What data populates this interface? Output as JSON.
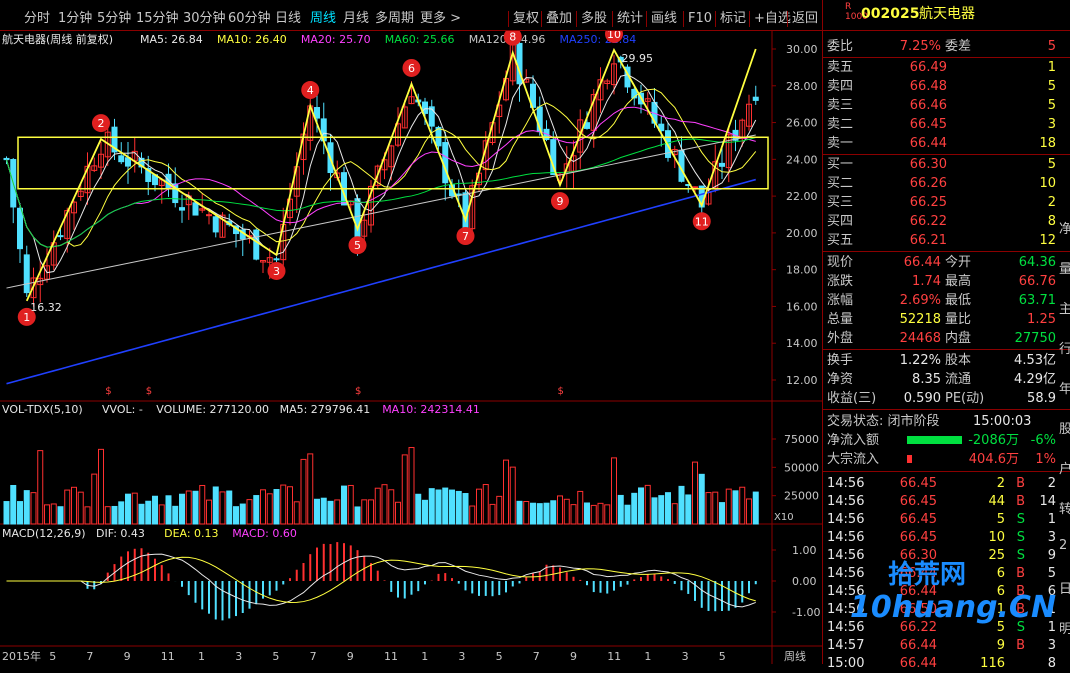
{
  "toolbar": {
    "periods": [
      "分时",
      "1分钟",
      "5分钟",
      "15分钟",
      "30分钟",
      "60分钟",
      "日线",
      "周线",
      "月线",
      "多周期",
      "更多 >"
    ],
    "active_period": "周线",
    "tools": [
      "复权",
      "叠加",
      "多股",
      "统计",
      "画线",
      "F10",
      "标记",
      "+自选",
      "返回"
    ]
  },
  "chart": {
    "title": "航天电器(周线 前复权)",
    "ma_labels": [
      {
        "text": "MA5: 26.84",
        "color": "#e8e8e8"
      },
      {
        "text": "MA10: 26.40",
        "color": "#ffff40"
      },
      {
        "text": "MA20: 25.70",
        "color": "#ff40ff"
      },
      {
        "text": "MA60: 25.66",
        "color": "#00e040"
      },
      {
        "text": "MA120: 24.96",
        "color": "#c8c8c8"
      },
      {
        "text": "MA250: 22.84",
        "color": "#2040ff"
      }
    ],
    "price_ticks": [
      "30.00",
      "28.00",
      "26.00",
      "24.00",
      "22.00",
      "20.00",
      "18.00",
      "16.00",
      "14.00",
      "12.00"
    ],
    "high_label": "29.95",
    "low_label": "16.32",
    "volume_title": "VOL-TDX(5,10)",
    "volume_labels": [
      {
        "text": "VVOL: -",
        "color": "#e8e8e8"
      },
      {
        "text": "VOLUME: 277120.00",
        "color": "#e8e8e8"
      },
      {
        "text": "MA5: 279796.41",
        "color": "#e8e8e8"
      },
      {
        "text": "MA10: 242314.41",
        "color": "#ff40ff"
      }
    ],
    "volume_ticks": [
      "75000",
      "50000",
      "25000"
    ],
    "volume_unit": "X10",
    "macd_title": "MACD(12,26,9)",
    "macd_labels": [
      {
        "text": "DIF: 0.43",
        "color": "#e8e8e8"
      },
      {
        "text": "DEA: 0.13",
        "color": "#ffff40"
      },
      {
        "text": "MACD: 0.60",
        "color": "#ff40ff"
      }
    ],
    "macd_ticks": [
      "1.00",
      "0.00",
      "-1.00"
    ],
    "x_labels": [
      "2015年",
      "5",
      "7",
      "9",
      "11",
      "1",
      "3",
      "5",
      "7",
      "9",
      "11",
      "1",
      "3",
      "5",
      "7",
      "9",
      "11",
      "1",
      "3",
      "5"
    ],
    "period_label": "周线",
    "markers": [
      "1",
      "2",
      "3",
      "4",
      "5",
      "6",
      "7",
      "8",
      "9",
      "10",
      "11"
    ],
    "colors": {
      "up": "#ff3030",
      "down": "#50e0ff",
      "ma5": "#e8e8e8",
      "ma10": "#ffff40",
      "ma20": "#ff40ff",
      "ma60": "#00e040",
      "ma120": "#c8c8c8",
      "ma250": "#2040ff",
      "zigzag": "#ffff40"
    }
  },
  "quote": {
    "code": "002025",
    "name": "航天电器",
    "weibi_label": "委比",
    "weibi_value": "7.25%",
    "weicha_label": "委差",
    "weicha_value": "5",
    "asks": [
      {
        "label": "卖五",
        "price": "66.49",
        "vol": "1"
      },
      {
        "label": "卖四",
        "price": "66.48",
        "vol": "5"
      },
      {
        "label": "卖三",
        "price": "66.46",
        "vol": "5"
      },
      {
        "label": "卖二",
        "price": "66.45",
        "vol": "3"
      },
      {
        "label": "卖一",
        "price": "66.44",
        "vol": "18"
      }
    ],
    "bids": [
      {
        "label": "买一",
        "price": "66.30",
        "vol": "5"
      },
      {
        "label": "买二",
        "price": "66.26",
        "vol": "10"
      },
      {
        "label": "买三",
        "price": "66.25",
        "vol": "2"
      },
      {
        "label": "买四",
        "price": "66.22",
        "vol": "8"
      },
      {
        "label": "买五",
        "price": "66.21",
        "vol": "12"
      }
    ],
    "stats": [
      {
        "l1": "现价",
        "v1": "66.44",
        "c1": "red",
        "l2": "今开",
        "v2": "64.36",
        "c2": "green"
      },
      {
        "l1": "涨跌",
        "v1": "1.74",
        "c1": "red",
        "l2": "最高",
        "v2": "66.76",
        "c2": "red"
      },
      {
        "l1": "涨幅",
        "v1": "2.69%",
        "c1": "red",
        "l2": "最低",
        "v2": "63.71",
        "c2": "green"
      },
      {
        "l1": "总量",
        "v1": "52218",
        "c1": "yellow",
        "l2": "量比",
        "v2": "1.25",
        "c2": "red"
      },
      {
        "l1": "外盘",
        "v1": "24468",
        "c1": "red",
        "l2": "内盘",
        "v2": "27750",
        "c2": "green"
      }
    ],
    "stats2": [
      {
        "l1": "换手",
        "v1": "1.22%",
        "l2": "股本",
        "v2": "4.53亿"
      },
      {
        "l1": "净资",
        "v1": "8.35",
        "l2": "流通",
        "v2": "4.29亿"
      },
      {
        "l1": "收益(三)",
        "v1": "0.590",
        "l2": "PE(动)",
        "v2": "58.9"
      }
    ],
    "status_label": "交易状态: 闭市阶段",
    "status_time": "15:00:03",
    "flow": [
      {
        "label": "净流入额",
        "value": "-2086万",
        "pct": "-6%",
        "color": "green",
        "bar": 0.55
      },
      {
        "label": "大宗流入",
        "value": "404.6万",
        "pct": "1%",
        "color": "red",
        "bar": 0.05
      }
    ],
    "ticks": [
      {
        "time": "14:56",
        "price": "66.45",
        "vol": "2",
        "side": "B",
        "n": "2"
      },
      {
        "time": "14:56",
        "price": "66.45",
        "vol": "44",
        "side": "B",
        "n": "14"
      },
      {
        "time": "14:56",
        "price": "66.45",
        "vol": "5",
        "side": "S",
        "n": "1"
      },
      {
        "time": "14:56",
        "price": "66.45",
        "vol": "10",
        "side": "S",
        "n": "3"
      },
      {
        "time": "14:56",
        "price": "66.30",
        "vol": "25",
        "side": "S",
        "n": "9"
      },
      {
        "time": "14:56",
        "price": "66.44",
        "vol": "6",
        "side": "B",
        "n": "5"
      },
      {
        "time": "14:56",
        "price": "66.44",
        "vol": "6",
        "side": "B",
        "n": "6"
      },
      {
        "time": "14:56",
        "price": "66.50",
        "vol": "1",
        "side": "B",
        "n": "1"
      },
      {
        "time": "14:56",
        "price": "66.22",
        "vol": "5",
        "side": "S",
        "n": "1"
      },
      {
        "time": "14:57",
        "price": "66.44",
        "vol": "9",
        "side": "B",
        "n": "3"
      },
      {
        "time": "15:00",
        "price": "66.44",
        "vol": "116",
        "side": "",
        "n": "8"
      }
    ],
    "side_chars": [
      "净",
      "量",
      "主",
      "行",
      "年",
      "股",
      "户",
      "转",
      "2",
      "日",
      "明"
    ]
  },
  "watermark": {
    "text1": "拾荒网",
    "text2": "10huang.CN"
  }
}
